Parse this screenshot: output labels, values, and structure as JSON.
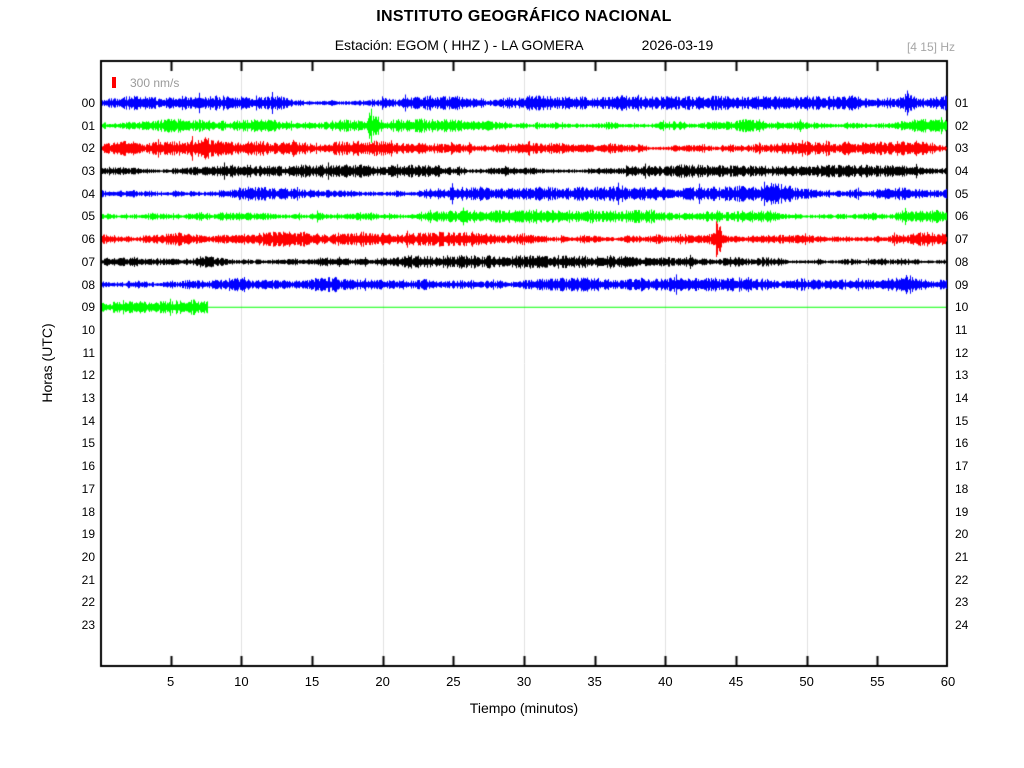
{
  "header": {
    "title": "INSTITUTO GEOGRÁFICO NACIONAL",
    "subtitle": "Estación:  EGOM ( HHZ ) - LA GOMERA",
    "date": "2026-03-19",
    "filter": "[4 15] Hz"
  },
  "legend": {
    "scale_label": "300 nm/s",
    "marker_color": "#ff0000",
    "text_color": "#9a9a9a"
  },
  "axes": {
    "y_label": "Horas (UTC)",
    "x_label": "Tiempo (minutos)",
    "x_ticks": [
      5,
      10,
      15,
      20,
      25,
      30,
      35,
      40,
      45,
      50,
      55,
      60
    ],
    "gridline_minutes": [
      10,
      20,
      30,
      40,
      50
    ],
    "grid_color": "#e0e0e0",
    "left_hour_labels": [
      "00",
      "01",
      "02",
      "03",
      "04",
      "05",
      "06",
      "07",
      "08",
      "09",
      "10",
      "11",
      "12",
      "13",
      "14",
      "15",
      "16",
      "17",
      "18",
      "19",
      "20",
      "21",
      "22",
      "23"
    ],
    "right_hour_labels": [
      "01",
      "02",
      "03",
      "04",
      "05",
      "06",
      "07",
      "08",
      "09",
      "10",
      "11",
      "12",
      "13",
      "14",
      "15",
      "16",
      "17",
      "18",
      "19",
      "20",
      "21",
      "22",
      "23",
      "24"
    ]
  },
  "chart_data": {
    "type": "line",
    "title": "INSTITUTO GEOGRÁFICO NACIONAL",
    "station_display": "Estación:  EGOM ( HHZ ) - LA GOMERA",
    "date": "2026-03-19",
    "bandpass_hz": [
      4,
      15
    ],
    "amplitude_scale": "300 nm/s",
    "xlabel": "Tiempo (minutos)",
    "ylabel": "Horas (UTC)",
    "x_range_minutes": [
      0,
      60
    ],
    "hour_rows": 24,
    "grid": "vertical gridlines every 10 minutes",
    "traces": [
      {
        "hour": "00",
        "color": "#0000ff",
        "amplitude": 3.2,
        "active_minutes": 60,
        "events": [
          {
            "minute": 57.0,
            "peak": 0.7,
            "sigma": 0.3
          }
        ]
      },
      {
        "hour": "01",
        "color": "#00ff00",
        "amplitude": 3.0,
        "active_minutes": 60,
        "events": [
          {
            "minute": 19.1,
            "peak": 3.6,
            "sigma": 0.1
          },
          {
            "minute": 19.25,
            "peak": 1.0,
            "sigma": 0.45
          }
        ]
      },
      {
        "hour": "02",
        "color": "#ff0000",
        "amplitude": 3.3,
        "active_minutes": 60,
        "events": [
          {
            "minute": 36.0,
            "peak": 1.1,
            "sigma": 0.07
          },
          {
            "minute": 7.5,
            "peak": 0.5,
            "sigma": 0.4
          }
        ]
      },
      {
        "hour": "03",
        "color": "#000000",
        "amplitude": 2.8,
        "active_minutes": 60,
        "events": []
      },
      {
        "hour": "04",
        "color": "#0000ff",
        "amplitude": 3.2,
        "active_minutes": 60,
        "events": [
          {
            "minute": 47.5,
            "peak": 0.5,
            "sigma": 1.5
          }
        ]
      },
      {
        "hour": "05",
        "color": "#00ff00",
        "amplitude": 3.0,
        "active_minutes": 60,
        "events": []
      },
      {
        "hour": "06",
        "color": "#ff0000",
        "amplitude": 3.3,
        "active_minutes": 60,
        "events": [
          {
            "minute": 43.7,
            "peak": 2.9,
            "sigma": 0.12
          },
          {
            "minute": 43.9,
            "peak": 0.9,
            "sigma": 0.5
          }
        ]
      },
      {
        "hour": "07",
        "color": "#000000",
        "amplitude": 2.8,
        "active_minutes": 60,
        "events": []
      },
      {
        "hour": "08",
        "color": "#0000ff",
        "amplitude": 3.2,
        "active_minutes": 60,
        "events": [
          {
            "minute": 57.2,
            "peak": 0.8,
            "sigma": 0.25
          }
        ]
      },
      {
        "hour": "09",
        "color": "#00ff00",
        "amplitude": 3.4,
        "active_minutes": 7.6,
        "events": [
          {
            "minute": 1.4,
            "peak": 0.9,
            "sigma": 0.8
          }
        ]
      }
    ]
  }
}
